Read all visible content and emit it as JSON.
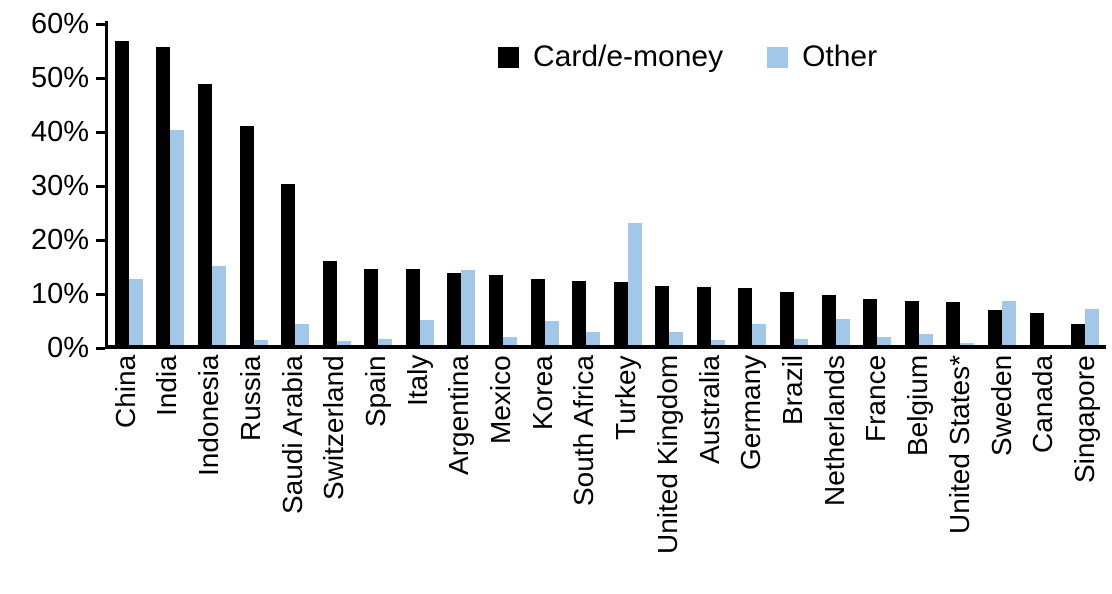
{
  "chart_data": {
    "type": "bar",
    "title": "",
    "xlabel": "",
    "ylabel": "",
    "ylim": [
      0,
      60
    ],
    "ytick_values": [
      0,
      10,
      20,
      30,
      40,
      50,
      60
    ],
    "ytick_labels": [
      "0%",
      "10%",
      "20%",
      "30%",
      "40%",
      "50%",
      "60%"
    ],
    "grid": false,
    "legend_position": "top-center",
    "categories": [
      "China",
      "India",
      "Indonesia",
      "Russia",
      "Saudi Arabia",
      "Switzerland",
      "Spain",
      "Italy",
      "Argentina",
      "Mexico",
      "Korea",
      "South Africa",
      "Turkey",
      "United Kingdom",
      "Australia",
      "Germany",
      "Brazil",
      "Netherlands",
      "France",
      "Belgium",
      "United States*",
      "Sweden",
      "Canada",
      "Singapore"
    ],
    "series": [
      {
        "name": "Card/e-money",
        "color": "#000000",
        "values": [
          56.3,
          55.1,
          48.3,
          40.6,
          29.8,
          15.5,
          14.1,
          14.0,
          13.4,
          12.9,
          12.3,
          11.8,
          11.7,
          11.0,
          10.8,
          10.6,
          9.9,
          9.2,
          8.6,
          8.2,
          7.9,
          6.5,
          5.9,
          3.9
        ]
      },
      {
        "name": "Other",
        "color": "#A3C7E8",
        "values": [
          12.3,
          39.8,
          14.7,
          1.0,
          3.8,
          0.8,
          1.1,
          4.7,
          13.8,
          1.4,
          4.5,
          2.4,
          22.6,
          2.4,
          1.0,
          3.9,
          1.2,
          4.8,
          1.5,
          2.0,
          0.3,
          8.1,
          0.0,
          6.6
        ]
      }
    ]
  },
  "legend": {
    "items": [
      {
        "label": "Card/e-money",
        "color": "#000000"
      },
      {
        "label": "Other",
        "color": "#A3C7E8"
      }
    ]
  }
}
